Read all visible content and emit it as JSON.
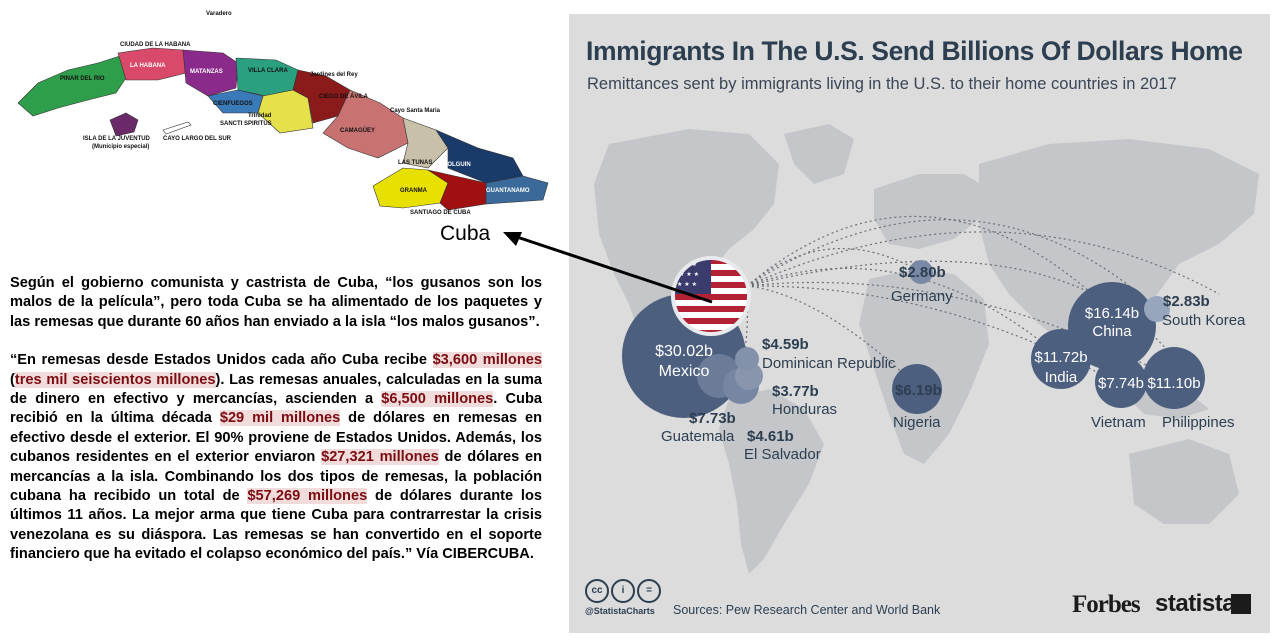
{
  "cuba_map": {
    "provinces": [
      {
        "name": "CIUDAD DE LA HABANA",
        "color": "#d94a6a"
      },
      {
        "name": "Varadero",
        "color": null
      },
      {
        "name": "LA HABANA",
        "color": "#d94a6a"
      },
      {
        "name": "PINAR DEL RIO",
        "color": "#2f9e4a"
      },
      {
        "name": "MATANZAS",
        "color": "#8a2a8a"
      },
      {
        "name": "VILLA CLARA",
        "color": "#2aa080"
      },
      {
        "name": "Jardines del Rey",
        "color": null
      },
      {
        "name": "CIEGO DE ÁVILA",
        "color": "#8b1a1a"
      },
      {
        "name": "CIENFUEGOS",
        "color": "#3a7ab8"
      },
      {
        "name": "Cayo Santa Maria",
        "color": null
      },
      {
        "name": "Trinidad",
        "color": null
      },
      {
        "name": "SANCTI SPIRITUS",
        "color": "#e6e04a"
      },
      {
        "name": "CAMAGÜEY",
        "color": "#c87272"
      },
      {
        "name": "ISLA DE LA JUVENTUD",
        "color": "#6a2a6a"
      },
      {
        "name": "(Municipio especial)",
        "color": null
      },
      {
        "name": "CAYO LARGO DEL SUR",
        "color": null
      },
      {
        "name": "LAS TUNAS",
        "color": "#c8c0a8"
      },
      {
        "name": "HOLGUIN",
        "color": "#1a3a6a"
      },
      {
        "name": "GRANMA",
        "color": "#e8e000"
      },
      {
        "name": "GUANTANAMO",
        "color": "#3a6a9a"
      },
      {
        "name": "SANTIAGO DE CUBA",
        "color": "#a01010"
      }
    ]
  },
  "caption": "Cuba",
  "article": {
    "p1": "Según el gobierno comunista y castrista de Cuba, “los gusanos son los malos de la película”, pero toda Cuba se ha alimentado de los paquetes y las remesas que durante 60 años han enviado a la isla “los malos gusanos”.",
    "p2": [
      {
        "t": "“En remesas desde Estados Unidos cada año Cuba recibe "
      },
      {
        "t": "$3,600 millones",
        "hl": true
      },
      {
        "t": " ("
      },
      {
        "t": "tres mil seiscientos millones",
        "hl": true
      },
      {
        "t": "). Las remesas anuales, calculadas en la suma de dinero en efectivo y mercancías, ascienden a "
      },
      {
        "t": "$6,500 millones",
        "hl": true
      },
      {
        "t": ". Cuba recibió en la última década "
      },
      {
        "t": "$29 mil millones",
        "hl": true
      },
      {
        "t": " de dólares en remesas en efectivo desde el exterior. El 90% proviene de Estados Unidos. Además, los cubanos residentes en el exterior enviaron "
      },
      {
        "t": "$27,321 millones",
        "hl": true
      },
      {
        "t": " de dólares en mercancías a la isla. Combinando los dos tipos de remesas, la población cubana ha recibido un total de "
      },
      {
        "t": "$57,269 millones",
        "hl": true
      },
      {
        "t": " de dólares durante los últimos 11 años. La mejor arma que tiene Cuba para contrarrestar la crisis venezolana es su diáspora. Las remesas se han convertido en el soporte financiero que ha evitado el colapso económico del país.” Vía CIBERCUBA."
      }
    ]
  },
  "infographic": {
    "title": "Immigrants In The U.S. Send Billions Of Dollars Home",
    "subtitle": "Remittances sent by immigrants living in the U.S. to their home countries in 2017",
    "bubble_color": "#4d5f7f",
    "map_color": "#c4c6c9",
    "handle": "@StatistaCharts",
    "sources": "Sources: Pew Research Center and World Bank",
    "brand1": "Forbes",
    "brand2": "statista"
  },
  "chart_data": {
    "type": "bubble map",
    "unit": "USD billions",
    "series": [
      {
        "country": "Mexico",
        "label": "$30.02b",
        "value": 30.02
      },
      {
        "country": "China",
        "label": "$16.14b",
        "value": 16.14
      },
      {
        "country": "India",
        "label": "$11.72b",
        "value": 11.72
      },
      {
        "country": "Philippines",
        "label": "$11.10b",
        "value": 11.1
      },
      {
        "country": "Vietnam",
        "label": "$7.74b",
        "value": 7.74
      },
      {
        "country": "Guatemala",
        "label": "$7.73b",
        "value": 7.73
      },
      {
        "country": "Nigeria",
        "label": "$6.19b",
        "value": 6.19
      },
      {
        "country": "El Salvador",
        "label": "$4.61b",
        "value": 4.61
      },
      {
        "country": "Dominican Republic",
        "label": "$4.59b",
        "value": 4.59
      },
      {
        "country": "Honduras",
        "label": "$3.77b",
        "value": 3.77
      },
      {
        "country": "South Korea",
        "label": "$2.83b",
        "value": 2.83
      },
      {
        "country": "Germany",
        "label": "$2.80b",
        "value": 2.8
      }
    ]
  }
}
